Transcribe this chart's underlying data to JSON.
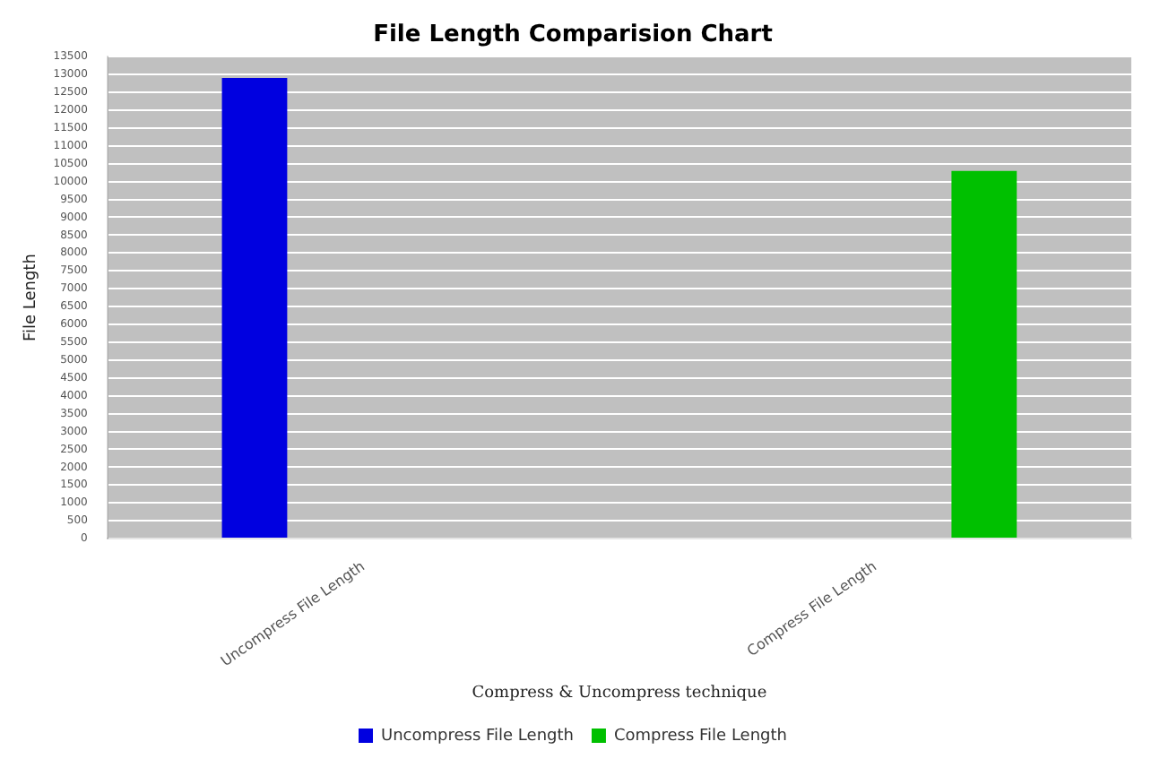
{
  "chart_data": {
    "type": "bar",
    "title": "File Length Comparision Chart",
    "xlabel": "Compress & Uncompress technique",
    "ylabel": "File Length",
    "categories": [
      "Uncompress File Length",
      "Compress File Length"
    ],
    "series": [
      {
        "name": "Uncompress File Length",
        "color": "#0000e0",
        "values": [
          12900,
          null
        ]
      },
      {
        "name": "Compress File Length",
        "color": "#00c000",
        "values": [
          null,
          10300
        ]
      }
    ],
    "ylim": [
      0,
      13500
    ],
    "yticks": [
      0,
      500,
      1000,
      1500,
      2000,
      2500,
      3000,
      3500,
      4000,
      4500,
      5000,
      5500,
      6000,
      6500,
      7000,
      7500,
      8000,
      8500,
      9000,
      9500,
      10000,
      10500,
      11000,
      11500,
      12000,
      12500,
      13000,
      13500
    ],
    "grid": "y",
    "legend": "bottom"
  }
}
